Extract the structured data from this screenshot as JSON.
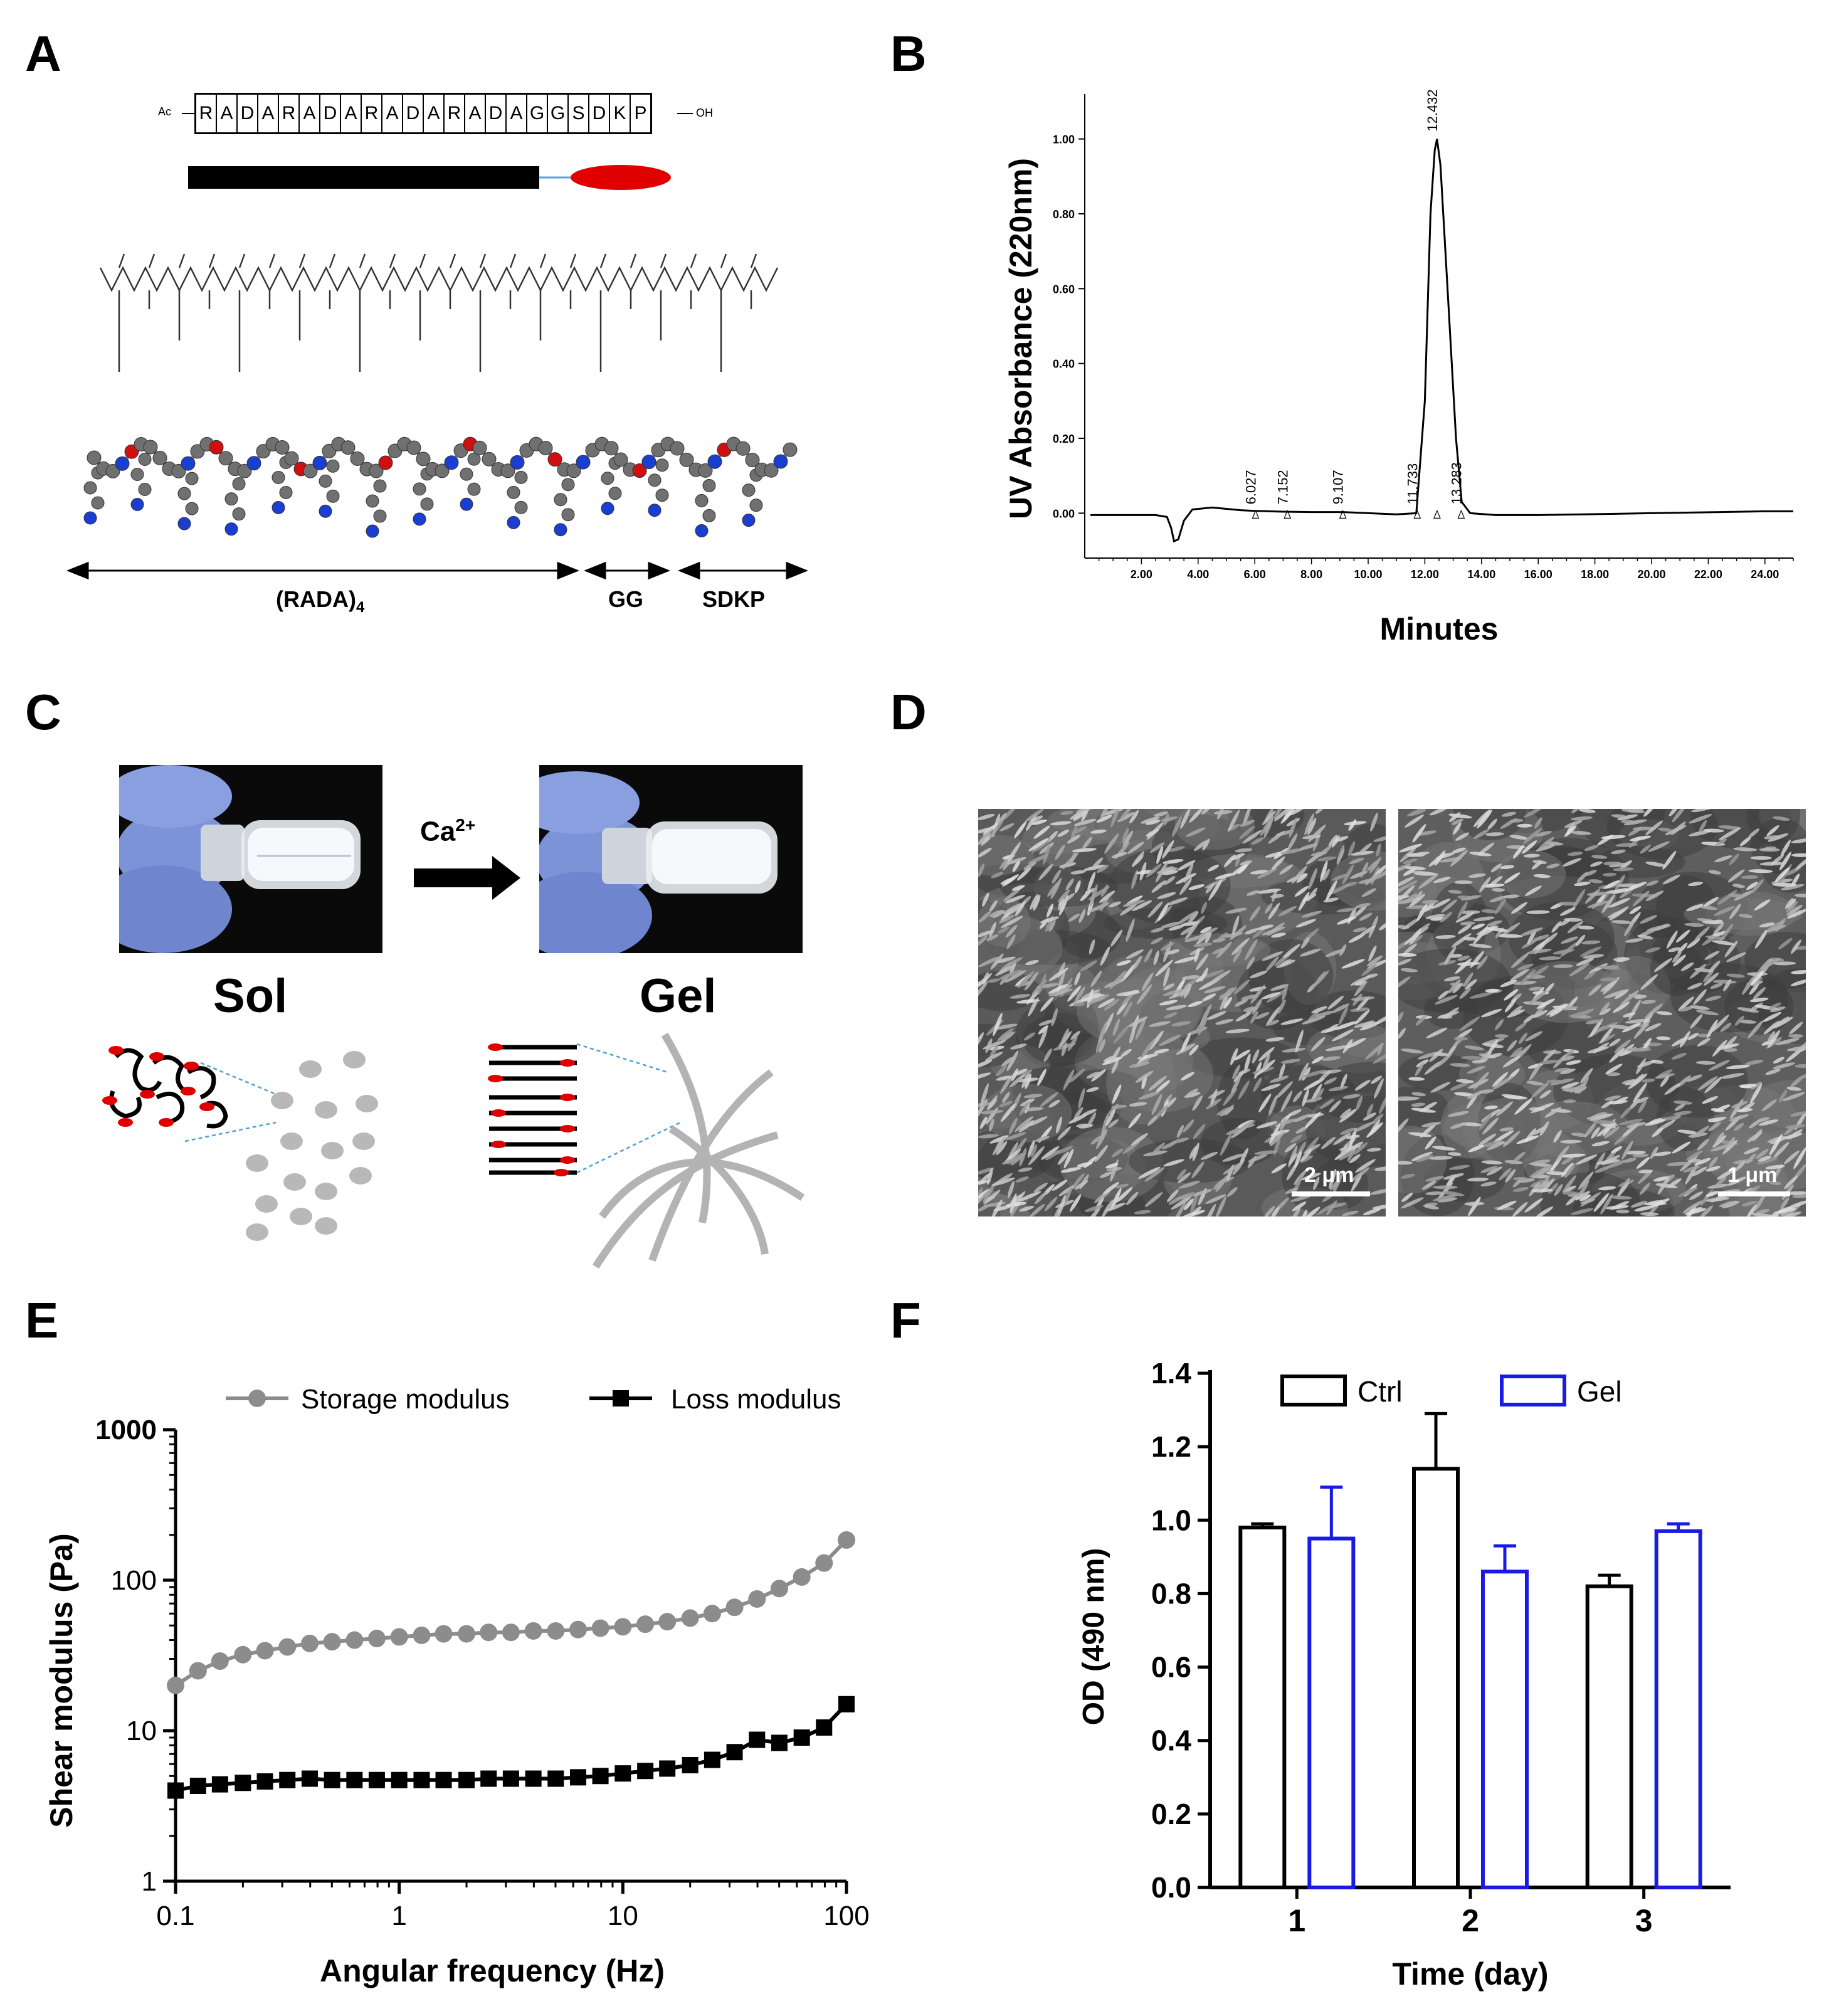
{
  "panels": {
    "A": {
      "label": "A",
      "sequence_prefix": "Ac",
      "sequence_suffix": "OH",
      "sequence": [
        "R",
        "A",
        "D",
        "A",
        "R",
        "A",
        "D",
        "A",
        "R",
        "A",
        "D",
        "A",
        "R",
        "A",
        "D",
        "A",
        "G",
        "G",
        "S",
        "D",
        "K",
        "P"
      ],
      "segments": [
        {
          "name": "(RADA)",
          "subscript": "4"
        },
        {
          "name": "GG",
          "subscript": ""
        },
        {
          "name": "SDKP",
          "subscript": ""
        }
      ]
    },
    "B": {
      "label": "B",
      "ylabel": "UV Absorbance  (220nm)",
      "xlabel": "Minutes"
    },
    "C": {
      "label": "C",
      "trigger": "Ca",
      "trigger_sup": "2+",
      "left_state": "Sol",
      "right_state": "Gel"
    },
    "D": {
      "label": "D",
      "scale_left": "2 μm",
      "scale_right": "1 μm"
    },
    "E": {
      "label": "E",
      "ylabel": "Shear modulus (Pa)",
      "xlabel": "Angular frequency (Hz)"
    },
    "F": {
      "label": "F",
      "ylabel": "OD (490 nm)",
      "xlabel": "Time (day)"
    }
  },
  "chart_data": [
    {
      "id": "B",
      "type": "line",
      "title": "",
      "xlabel": "Minutes",
      "ylabel": "UV Absorbance  (220nm)",
      "xlim": [
        0,
        25
      ],
      "ylim": [
        -0.12,
        1.12
      ],
      "xticks": [
        2,
        4,
        6,
        8,
        10,
        12,
        14,
        16,
        18,
        20,
        22,
        24
      ],
      "xtick_labels": [
        "2.00",
        "4.00",
        "6.00",
        "8.00",
        "10.00",
        "12.00",
        "14.00",
        "16.00",
        "18.00",
        "20.00",
        "22.00",
        "24.00"
      ],
      "yticks": [
        0,
        0.2,
        0.4,
        0.6,
        0.8,
        1.0
      ],
      "ytick_labels": [
        "0.00",
        "0.20",
        "0.40",
        "0.60",
        "0.80",
        "1.00"
      ],
      "series": [
        {
          "name": "chromatogram",
          "x": [
            0.2,
            2.5,
            2.9,
            3.05,
            3.15,
            3.3,
            3.5,
            3.8,
            4.5,
            5.5,
            6.0,
            7.0,
            8.0,
            9.1,
            10,
            11,
            11.7,
            12.0,
            12.2,
            12.35,
            12.43,
            12.55,
            12.8,
            13.1,
            13.3,
            13.6,
            14.5,
            16,
            20,
            24,
            25
          ],
          "y": [
            -0.005,
            -0.005,
            -0.01,
            -0.04,
            -0.075,
            -0.07,
            -0.02,
            0.01,
            0.015,
            0.008,
            0.006,
            0.004,
            0.003,
            0.003,
            0.0,
            -0.003,
            0.0,
            0.3,
            0.8,
            0.97,
            1.0,
            0.93,
            0.6,
            0.2,
            0.03,
            0.0,
            -0.005,
            -0.005,
            0.0,
            0.005,
            0.005
          ]
        }
      ],
      "peak_labels": [
        {
          "x": 6.027,
          "label": "6.027"
        },
        {
          "x": 7.152,
          "label": "7.152"
        },
        {
          "x": 9.107,
          "label": "9.107"
        },
        {
          "x": 11.733,
          "label": "11.733"
        },
        {
          "x": 12.432,
          "label": "12.432"
        },
        {
          "x": 13.283,
          "label": "13.283"
        }
      ]
    },
    {
      "id": "E",
      "type": "line",
      "scale": "log-log",
      "title": "",
      "xlabel": "Angular frequency (Hz)",
      "ylabel": "Shear modulus (Pa)",
      "xlim": [
        0.1,
        100
      ],
      "ylim": [
        1,
        1000
      ],
      "xtick_labels": [
        "0.1",
        "1",
        "10",
        "100"
      ],
      "ytick_labels": [
        "1",
        "10",
        "100",
        "1000"
      ],
      "legend_position": "top",
      "x": [
        0.1,
        0.126,
        0.158,
        0.2,
        0.251,
        0.316,
        0.398,
        0.501,
        0.631,
        0.794,
        1.0,
        1.26,
        1.58,
        2.0,
        2.51,
        3.16,
        3.98,
        5.01,
        6.31,
        7.94,
        10.0,
        12.6,
        15.8,
        20.0,
        25.1,
        31.6,
        39.8,
        50.1,
        63.1,
        79.4,
        100
      ],
      "series": [
        {
          "name": "Storage modulus",
          "color": "#8c8c8c",
          "marker": "circle",
          "values": [
            20,
            25,
            29,
            32,
            34,
            36,
            38,
            39,
            40,
            41,
            42,
            43,
            44,
            44,
            45,
            45,
            46,
            46,
            47,
            48,
            49,
            51,
            53,
            56,
            60,
            66,
            75,
            88,
            105,
            130,
            185
          ]
        },
        {
          "name": "Loss modulus",
          "color": "#000000",
          "marker": "square",
          "values": [
            4.0,
            4.3,
            4.4,
            4.5,
            4.6,
            4.7,
            4.8,
            4.7,
            4.7,
            4.7,
            4.7,
            4.7,
            4.7,
            4.7,
            4.8,
            4.8,
            4.8,
            4.8,
            4.9,
            5.0,
            5.2,
            5.4,
            5.6,
            5.9,
            6.4,
            7.2,
            8.7,
            8.3,
            9.0,
            10.5,
            15.0
          ]
        }
      ]
    },
    {
      "id": "F",
      "type": "bar",
      "title": "",
      "xlabel": "Time (day)",
      "ylabel": "OD (490 nm)",
      "ylim": [
        0,
        1.4
      ],
      "yticks": [
        0.0,
        0.2,
        0.4,
        0.6,
        0.8,
        1.0,
        1.2,
        1.4
      ],
      "ytick_labels": [
        "0.0",
        "0.2",
        "0.4",
        "0.6",
        "0.8",
        "1.0",
        "1.2",
        "1.4"
      ],
      "categories": [
        "1",
        "2",
        "3"
      ],
      "legend_position": "top",
      "series": [
        {
          "name": "Ctrl",
          "color": "#000000",
          "values": [
            0.98,
            1.14,
            0.82
          ],
          "errors": [
            0.01,
            0.15,
            0.03
          ]
        },
        {
          "name": "Gel",
          "color": "#1a1ae6",
          "values": [
            0.95,
            0.86,
            0.97
          ],
          "errors": [
            0.14,
            0.07,
            0.02
          ]
        }
      ]
    }
  ]
}
